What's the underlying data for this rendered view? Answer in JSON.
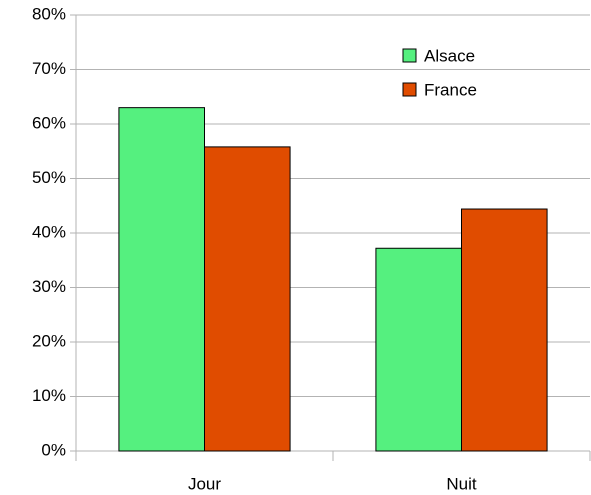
{
  "chart_data": {
    "type": "bar",
    "categories": [
      "Jour",
      "Nuit"
    ],
    "series": [
      {
        "name": "Alsace",
        "color": "#55f07f",
        "values": [
          63,
          37.2
        ]
      },
      {
        "name": "France",
        "color": "#e04c00",
        "values": [
          55.8,
          44.4
        ]
      }
    ],
    "ylim": [
      0,
      80
    ],
    "yticks": [
      {
        "value": 0,
        "label": "0%"
      },
      {
        "value": 10,
        "label": "10%"
      },
      {
        "value": 20,
        "label": "20%"
      },
      {
        "value": 30,
        "label": "30%"
      },
      {
        "value": 40,
        "label": "40%"
      },
      {
        "value": 50,
        "label": "50%"
      },
      {
        "value": 60,
        "label": "60%"
      },
      {
        "value": 70,
        "label": "70%"
      },
      {
        "value": 80,
        "label": "80%"
      }
    ],
    "grid": true,
    "legend": "upper-right"
  }
}
